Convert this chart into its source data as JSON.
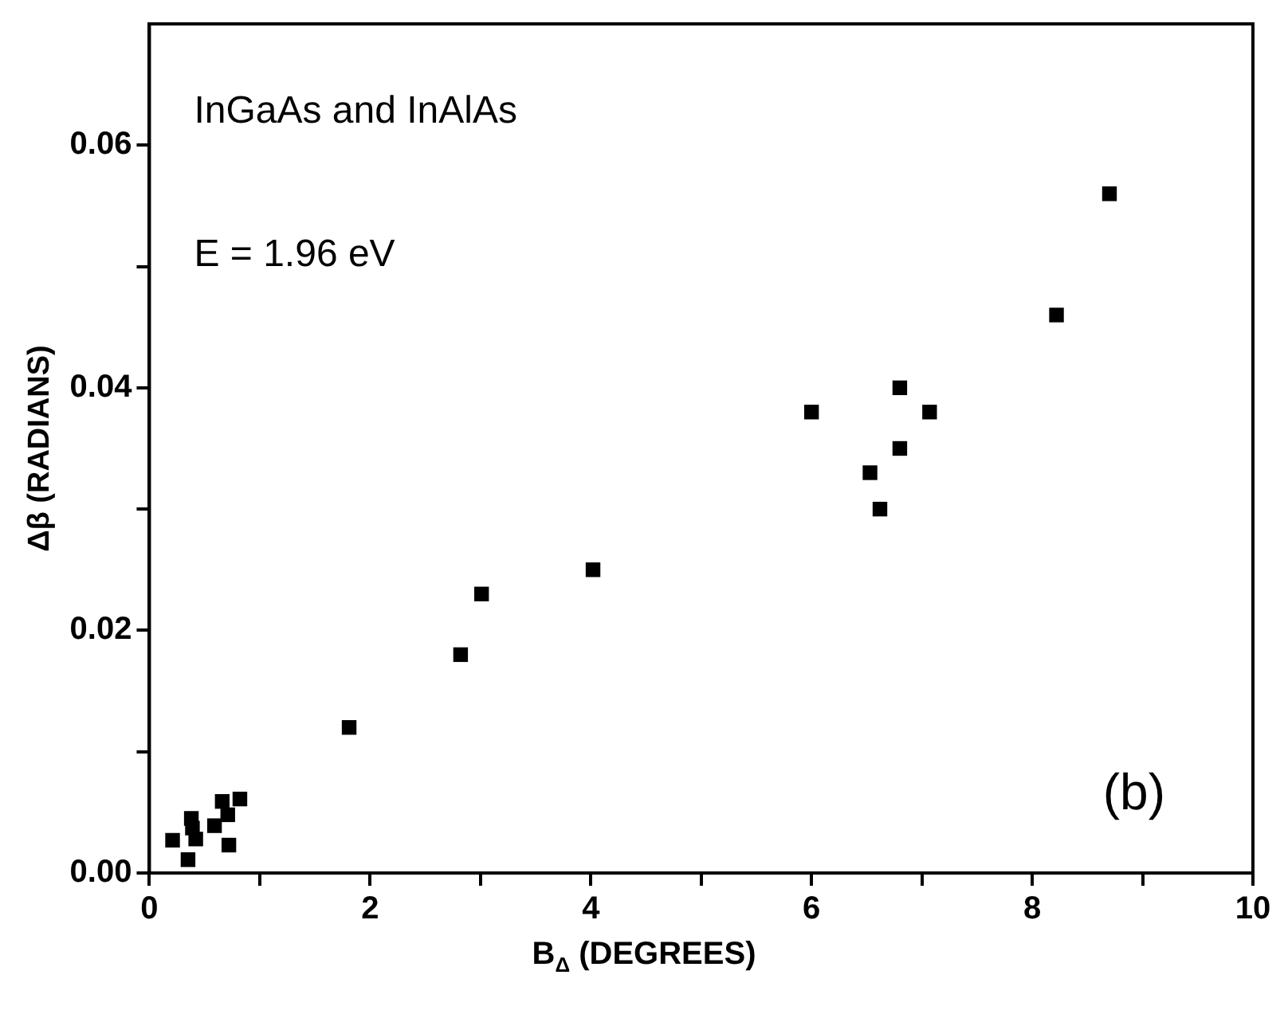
{
  "chart_data": {
    "type": "scatter",
    "xlabel": "B$_{Δ}$ (DEGREES)",
    "ylabel": "Δβ (RADIANS)",
    "annotations": [
      "InGaAs and InAlAs",
      "E = 1.96 eV",
      "(b)"
    ],
    "x": [
      8.7,
      8.22,
      6.8,
      6.0,
      7.07,
      6.8,
      6.53,
      6.62,
      4.02,
      3.01,
      2.82,
      1.81,
      0.82,
      0.66,
      0.59,
      0.71,
      0.72,
      0.38,
      0.21,
      0.42,
      0.35,
      0.39
    ],
    "values": [
      0.056,
      0.046,
      0.04,
      0.038,
      0.038,
      0.035,
      0.033,
      0.03,
      0.025,
      0.023,
      0.018,
      0.012,
      0.0061,
      0.0059,
      0.0039,
      0.0048,
      0.0023,
      0.0045,
      0.0027,
      0.0028,
      0.0011,
      0.0037
    ],
    "color": "#000000",
    "marker": "square",
    "grid": false,
    "legend": false,
    "xlim": [
      0,
      10
    ],
    "xticks": [
      0,
      {
        "value": 1,
        "label": null
      },
      2,
      {
        "value": 3,
        "label": null
      },
      4,
      {
        "value": 5,
        "label": null
      },
      6,
      {
        "value": 7,
        "label": null
      },
      8,
      {
        "value": 9,
        "label": null
      },
      10
    ],
    "ylim": [
      0,
      0.07
    ],
    "yticks": [
      {
        "value": 0,
        "label": "0.00"
      },
      {
        "value": 0.01,
        "label": null
      },
      {
        "value": 0.02,
        "label": "0.02"
      },
      {
        "value": 0.03,
        "label": null
      },
      {
        "value": 0.04,
        "label": "0.04"
      },
      {
        "value": 0.05,
        "label": null
      },
      {
        "value": 0.06,
        "label": "0.06"
      }
    ]
  }
}
